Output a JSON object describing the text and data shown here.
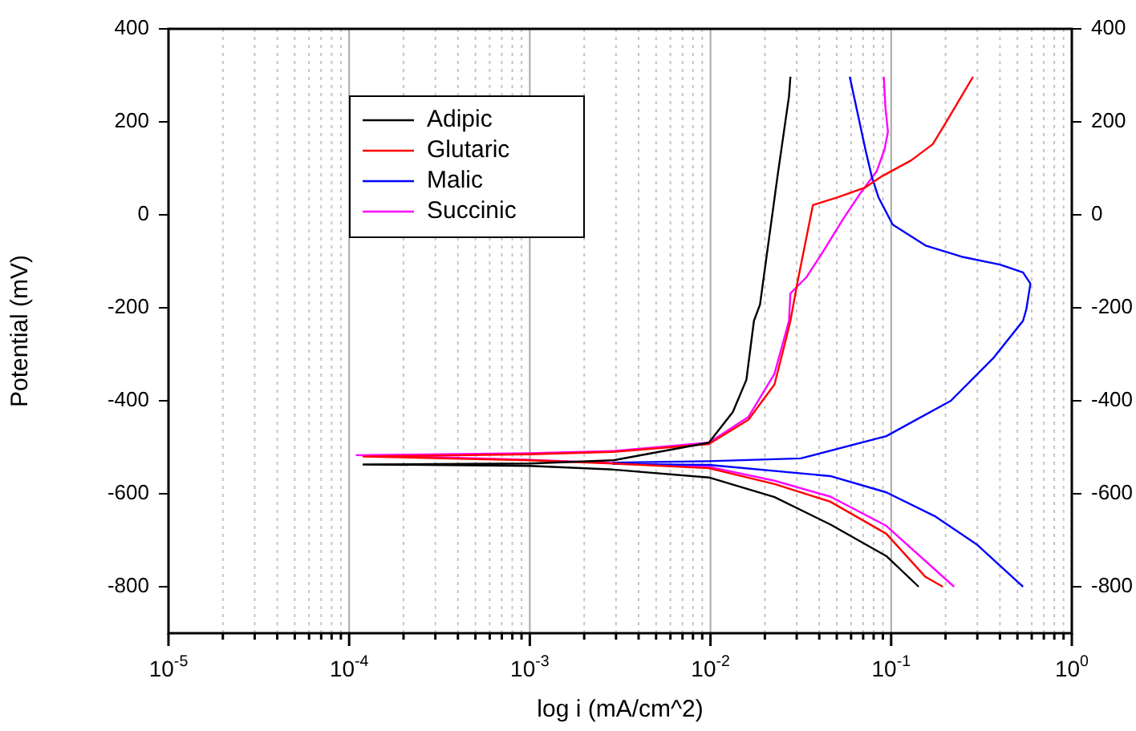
{
  "chart_data": {
    "type": "line",
    "xlabel": "log i (mA/cm^2)",
    "ylabel": "Potential (mV)",
    "log": "x",
    "grid": "x",
    "legend": "top left",
    "marker": "none",
    "line_style": "solid",
    "xlim": [
      1e-05,
      1
    ],
    "xticks": [
      {
        "value": 1e-05,
        "label": "10$^{-5}$"
      },
      {
        "value": 2e-05,
        "label": null
      },
      {
        "value": 3e-05,
        "label": null
      },
      {
        "value": 4e-05,
        "label": null
      },
      {
        "value": 5e-05,
        "label": null
      },
      {
        "value": 6e-05,
        "label": null
      },
      {
        "value": 7e-05,
        "label": null
      },
      {
        "value": 8e-05,
        "label": null
      },
      {
        "value": 9e-05,
        "label": null
      },
      {
        "value": 0.0001,
        "label": "10$^{-4}$"
      },
      {
        "value": 0.0002,
        "label": null
      },
      {
        "value": 0.0003,
        "label": null
      },
      {
        "value": 0.0004,
        "label": null
      },
      {
        "value": 0.0005,
        "label": null
      },
      {
        "value": 0.0006,
        "label": null
      },
      {
        "value": 0.0007,
        "label": null
      },
      {
        "value": 0.0008,
        "label": null
      },
      {
        "value": 0.0009,
        "label": null
      },
      {
        "value": 0.001,
        "label": "10$^{-3}$"
      },
      {
        "value": 0.002,
        "label": null
      },
      {
        "value": 0.003,
        "label": null
      },
      {
        "value": 0.004,
        "label": null
      },
      {
        "value": 0.005,
        "label": null
      },
      {
        "value": 0.006,
        "label": null
      },
      {
        "value": 0.007,
        "label": null
      },
      {
        "value": 0.008,
        "label": null
      },
      {
        "value": 0.009,
        "label": null
      },
      {
        "value": 0.01,
        "label": "10$^{-2}$"
      },
      {
        "value": 0.02,
        "label": null
      },
      {
        "value": 0.03,
        "label": null
      },
      {
        "value": 0.04,
        "label": null
      },
      {
        "value": 0.05,
        "label": null
      },
      {
        "value": 0.06,
        "label": null
      },
      {
        "value": 0.07,
        "label": null
      },
      {
        "value": 0.08,
        "label": null
      },
      {
        "value": 0.09,
        "label": null
      },
      {
        "value": 0.1,
        "label": "10$^{-1}$"
      },
      {
        "value": 0.2,
        "label": null
      },
      {
        "value": 0.3,
        "label": null
      },
      {
        "value": 0.4,
        "label": null
      },
      {
        "value": 0.5,
        "label": null
      },
      {
        "value": 0.6,
        "label": null
      },
      {
        "value": 0.7,
        "label": null
      },
      {
        "value": 0.8,
        "label": null
      },
      {
        "value": 0.9,
        "label": null
      },
      {
        "value": 1,
        "label": "10$^{0}$"
      }
    ],
    "ylim": [
      -900,
      400
    ],
    "yticks": [
      -800,
      -600,
      -400,
      -200,
      0,
      200,
      400
    ],
    "y2lim": [
      -900,
      400
    ],
    "y2ticks": [
      -800,
      -600,
      -400,
      -200,
      0,
      200,
      400
    ],
    "series": [
      {
        "name": "Adipic",
        "color": "#000000",
        "x": [
          0.142,
          0.094,
          0.046,
          0.0226,
          0.0098,
          0.0029,
          0.001,
          0.00012,
          0.001,
          0.0029,
          0.0098,
          0.0133,
          0.0158,
          0.0174,
          0.0188,
          0.0235,
          0.0272,
          0.0277
        ],
        "values": [
          -800,
          -734,
          -666,
          -607,
          -565,
          -548,
          -540,
          -537,
          -535,
          -528,
          -490,
          -424,
          -355,
          -228,
          -193,
          83,
          255,
          297
        ]
      },
      {
        "name": "Glutaric",
        "color": "#ff0000",
        "x": [
          0.193,
          0.155,
          0.094,
          0.046,
          0.0226,
          0.0098,
          0.0029,
          0.001,
          0.00012,
          0.001,
          0.0029,
          0.0098,
          0.0162,
          0.0226,
          0.026,
          0.0277,
          0.0302,
          0.0369,
          0.051,
          0.072,
          0.089,
          0.129,
          0.17,
          0.2,
          0.245,
          0.284
        ],
        "values": [
          -800,
          -779,
          -686,
          -617,
          -579,
          -545,
          -535,
          -528,
          -520,
          -515,
          -510,
          -493,
          -441,
          -365,
          -272,
          -228,
          -148,
          21,
          38,
          59,
          83,
          117,
          152,
          197,
          255,
          297
        ]
      },
      {
        "name": "Malic",
        "color": "#0000ff",
        "x": [
          0.537,
          0.3,
          0.174,
          0.094,
          0.046,
          0.0098,
          0.0029,
          0.0029,
          0.0098,
          0.0316,
          0.094,
          0.214,
          0.37,
          0.537,
          0.56,
          0.59,
          0.537,
          0.4,
          0.245,
          0.155,
          0.102,
          0.085,
          0.078,
          0.072,
          0.065,
          0.059
        ],
        "values": [
          -800,
          -710,
          -648,
          -597,
          -562,
          -538,
          -536,
          -533,
          -530,
          -524,
          -476,
          -400,
          -307,
          -228,
          -203,
          -148,
          -124,
          -107,
          -90,
          -66,
          -21,
          38,
          83,
          141,
          221,
          297
        ]
      },
      {
        "name": "Succinic",
        "color": "#ff00ff",
        "x": [
          0.223,
          0.094,
          0.046,
          0.0226,
          0.0098,
          0.001,
          0.00011,
          0.001,
          0.0029,
          0.0098,
          0.0162,
          0.0226,
          0.0272,
          0.0277,
          0.034,
          0.042,
          0.054,
          0.068,
          0.083,
          0.092,
          0.096,
          0.093,
          0.091
        ],
        "values": [
          -800,
          -669,
          -606,
          -572,
          -542,
          -527,
          -517,
          -513,
          -508,
          -490,
          -435,
          -342,
          -228,
          -169,
          -134,
          -79,
          -10,
          48,
          93,
          141,
          179,
          230,
          297
        ]
      }
    ]
  }
}
